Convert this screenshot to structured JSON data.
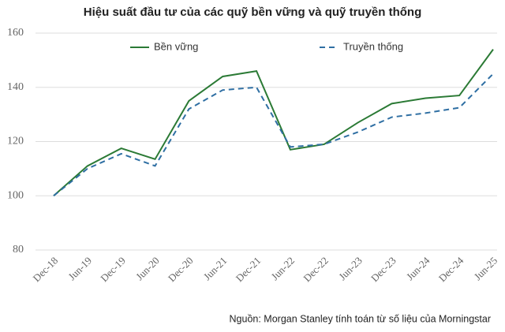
{
  "chart_data": {
    "type": "line",
    "title": "Hiệu suất đầu tư của các quỹ bền vững và quỹ truyền thống",
    "categories": [
      "Dec-18",
      "Jun-19",
      "Dec-19",
      "Jun-20",
      "Dec-20",
      "Jun-21",
      "Dec-21",
      "Jun-22",
      "Dec-22",
      "Jun-23",
      "Dec-23",
      "Jun-24",
      "Dec-24",
      "Jun-25"
    ],
    "series": [
      {
        "name": "Bền vững",
        "color": "#2b7a35",
        "dash": false,
        "values": [
          100,
          111,
          117.5,
          113.5,
          135,
          144,
          146,
          117,
          119,
          127,
          134,
          136,
          137,
          154
        ]
      },
      {
        "name": "Truyền thống",
        "color": "#2f6fa3",
        "dash": true,
        "values": [
          100,
          110,
          115.5,
          111,
          132,
          139,
          140,
          118,
          119,
          123.5,
          129,
          130.5,
          132.5,
          145
        ]
      }
    ],
    "ylim": [
      80,
      160
    ],
    "yticks": [
      80,
      100,
      120,
      140,
      160
    ],
    "grid": true,
    "source": "Nguồn: Morgan Stanley tính toán từ số liệu của Morningstar"
  }
}
